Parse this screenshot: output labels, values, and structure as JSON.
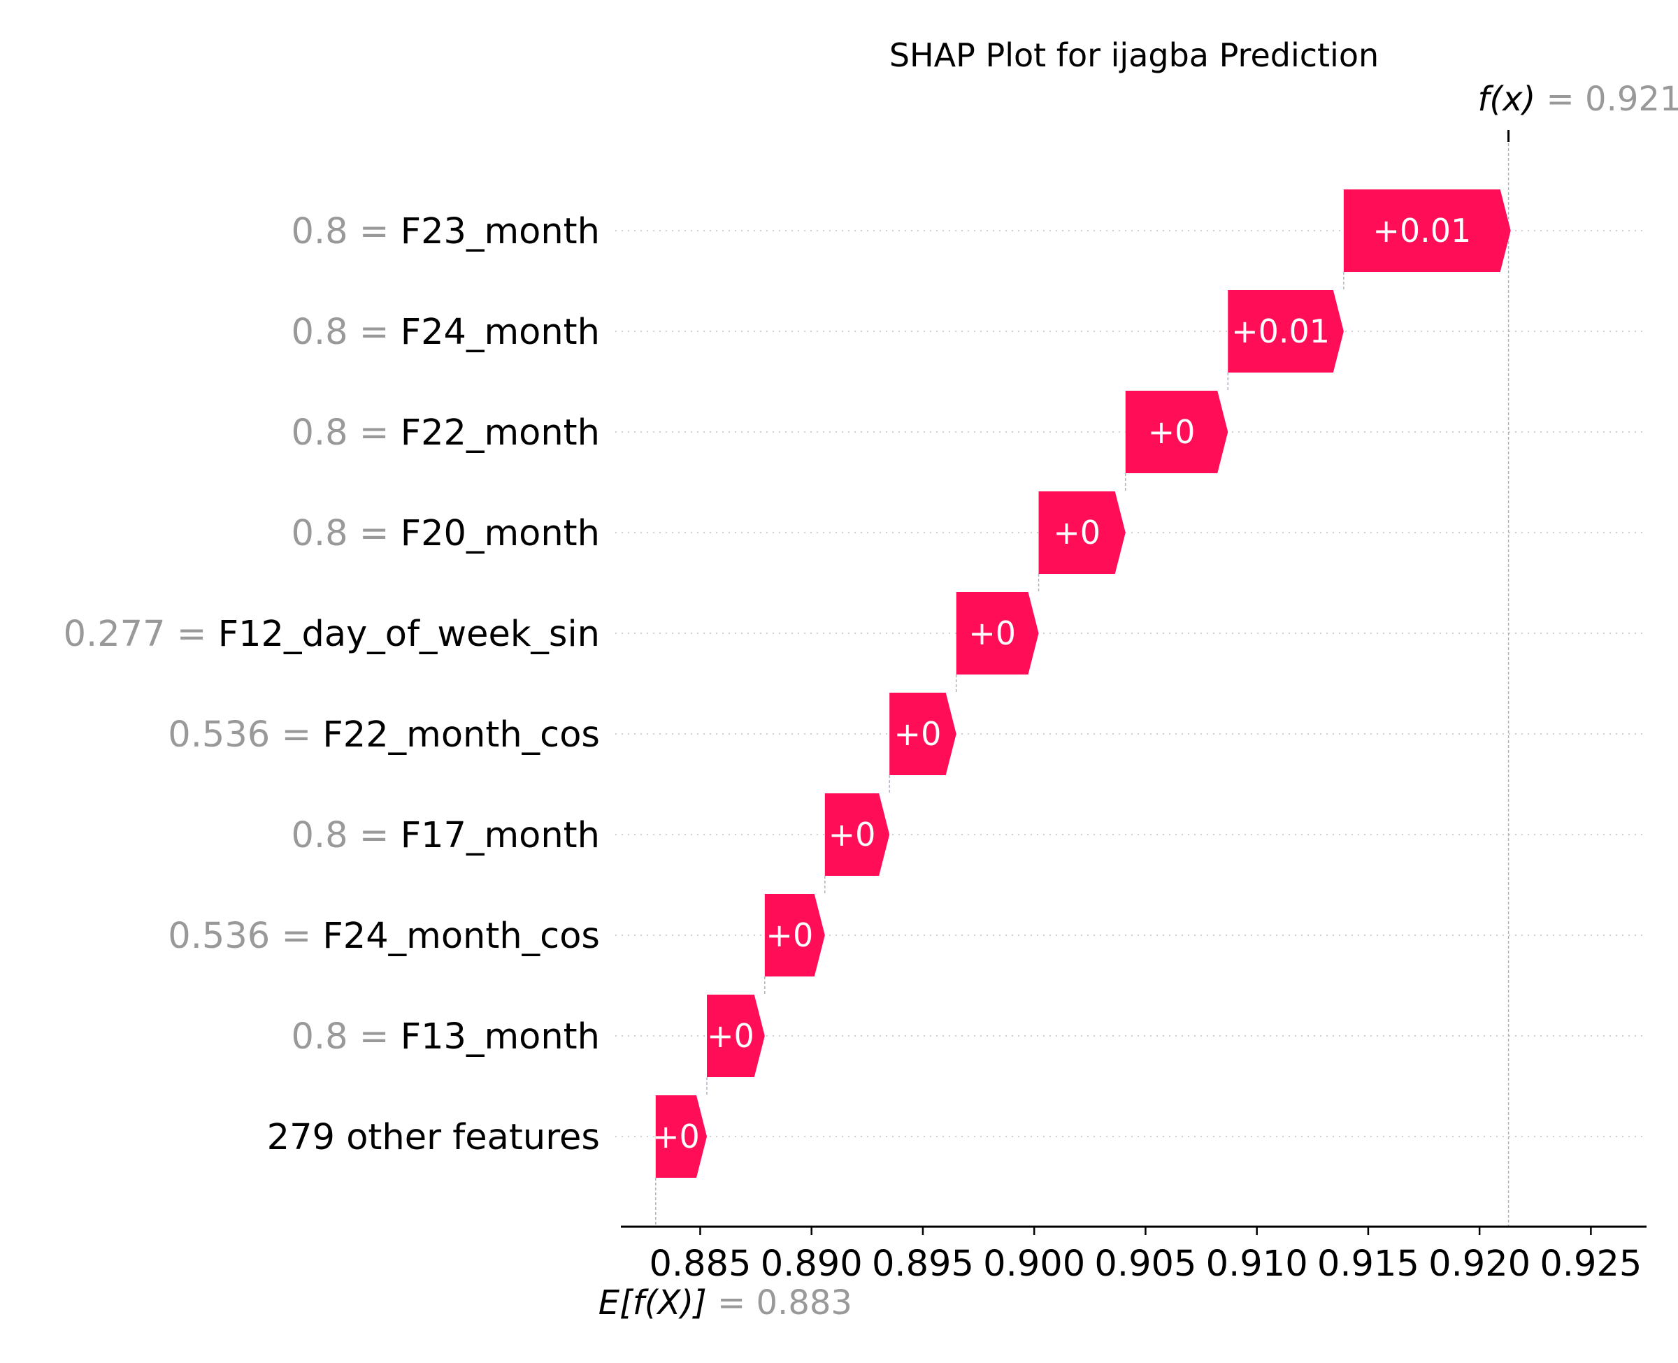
{
  "chart_data": {
    "type": "waterfall",
    "title": "SHAP Plot for ijagba Prediction",
    "xlim": [
      0.8815,
      0.9275
    ],
    "xticks": [
      "0.885",
      "0.890",
      "0.895",
      "0.900",
      "0.905",
      "0.910",
      "0.915",
      "0.920",
      "0.925"
    ],
    "base_value": {
      "label": "E[f(X)]",
      "value_text": "= 0.883",
      "value": 0.883
    },
    "output_value": {
      "label": "f(x)",
      "value_text": "= 0.921",
      "value": 0.9213
    },
    "positive_color": "#ff0d57",
    "features": [
      {
        "value": "0.8",
        "name": "F23_month",
        "shap": 0.0075,
        "label": "+0.01"
      },
      {
        "value": "0.8",
        "name": "F24_month",
        "shap": 0.0052,
        "label": "+0.01"
      },
      {
        "value": "0.8",
        "name": "F22_month",
        "shap": 0.0046,
        "label": "+0"
      },
      {
        "value": "0.8",
        "name": "F20_month",
        "shap": 0.0039,
        "label": "+0"
      },
      {
        "value": "0.277",
        "name": "F12_day_of_week_sin",
        "shap": 0.0037,
        "label": "+0"
      },
      {
        "value": "0.536",
        "name": "F22_month_cos",
        "shap": 0.003,
        "label": "+0"
      },
      {
        "value": "0.8",
        "name": "F17_month",
        "shap": 0.0029,
        "label": "+0"
      },
      {
        "value": "0.536",
        "name": "F24_month_cos",
        "shap": 0.0027,
        "label": "+0"
      },
      {
        "value": "0.8",
        "name": "F13_month",
        "shap": 0.0026,
        "label": "+0"
      },
      {
        "value": "",
        "name": "279 other features",
        "shap": 0.0023,
        "label": "+0"
      }
    ]
  }
}
